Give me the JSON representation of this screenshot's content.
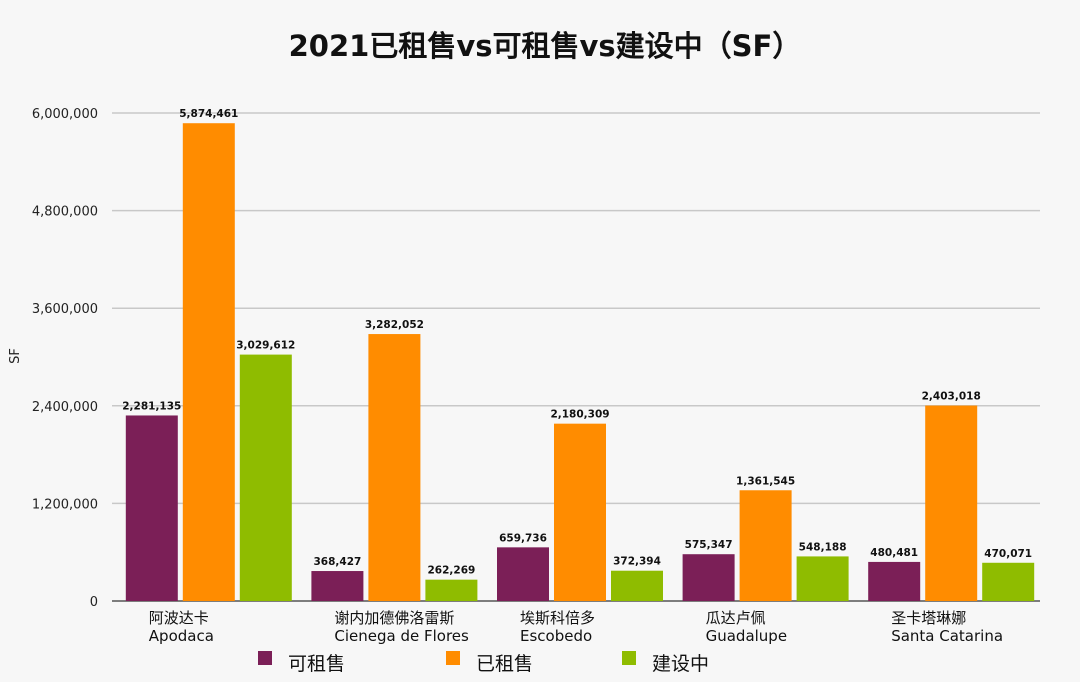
{
  "chart_data": {
    "type": "bar",
    "title": "2021已租售vs可租售vs建设中（SF）",
    "xlabel": "",
    "ylabel": "SF",
    "ylim": [
      0,
      6000000
    ],
    "yticks": [
      0,
      1200000,
      2400000,
      3600000,
      4800000,
      6000000
    ],
    "ytick_labels": [
      "0",
      "1,200,000",
      "2,400,000",
      "3,600,000",
      "4,800,000",
      "6,000,000"
    ],
    "grid": true,
    "legend_position": "bottom",
    "categories": [
      {
        "zh": "阿波达卡",
        "en": "Apodaca"
      },
      {
        "zh": "谢内加德佛洛雷斯",
        "en": "Cienega de Flores"
      },
      {
        "zh": "埃斯科倍多",
        "en": "Escobedo"
      },
      {
        "zh": "瓜达卢佩",
        "en": "Guadalupe"
      },
      {
        "zh": "圣卡塔琳娜",
        "en": "Santa Catarina"
      }
    ],
    "series": [
      {
        "name": "可租售",
        "color": "#7b1f57",
        "values": [
          2281135,
          368427,
          659736,
          575347,
          480481
        ],
        "labels": [
          "2,281,135",
          "368,427",
          "659,736",
          "575,347",
          "480,481"
        ]
      },
      {
        "name": "已租售",
        "color": "#ff8c00",
        "values": [
          5874461,
          3282052,
          2180309,
          1361545,
          2403018
        ],
        "labels": [
          "5,874,461",
          "3,282,052",
          "2,180,309",
          "1,361,545",
          "2,403,018"
        ]
      },
      {
        "name": "建设中",
        "color": "#8fbc00",
        "values": [
          3029612,
          262269,
          372394,
          548188,
          470071
        ],
        "labels": [
          "3,029,612",
          "262,269",
          "372,394",
          "548,188",
          "470,071"
        ]
      }
    ]
  }
}
